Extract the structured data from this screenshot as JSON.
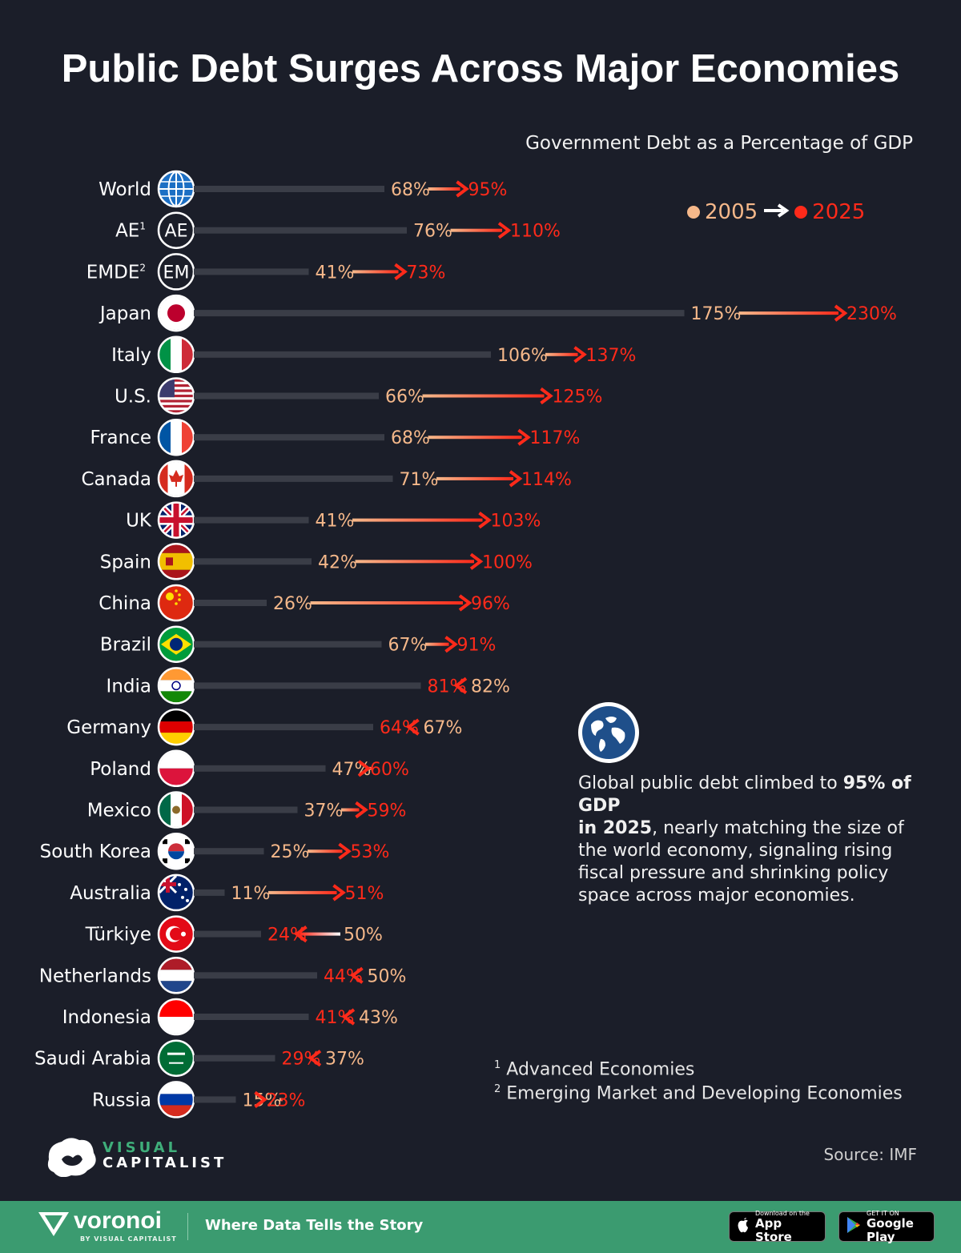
{
  "title": "Public Debt Surges Across Major Economies",
  "subtitle": "Government Debt as a Percentage of GDP",
  "legend": {
    "from_label": "2005",
    "to_label": "2025",
    "color_2005": "#f5b88a",
    "color_2025": "#ff2a1a"
  },
  "callout": {
    "icon": "globe-icon",
    "text_bold_1": "95% of GDP",
    "text_bold_2": "in 2025",
    "text_pre": "Global public debt climbed to ",
    "text_post": ", nearly matching the size of the world economy, signaling rising fiscal pressure and shrinking policy space across major economies."
  },
  "footnotes": [
    {
      "mark": "1",
      "text": "Advanced Economies"
    },
    {
      "mark": "2",
      "text": "Emerging Market and Developing Economies"
    }
  ],
  "source": "Source: IMF",
  "brand": {
    "vc_line1": "VISUAL",
    "vc_line2": "CAPITALIST",
    "voronoi": "voronoi",
    "voronoi_by": "BY VISUAL CAPITALIST",
    "tagline": "Where Data Tells the Story"
  },
  "stores": {
    "apple_small": "Download on the",
    "apple_big": "App Store",
    "google_small": "GET IT ON",
    "google_big": "Google Play"
  },
  "chart_data": {
    "type": "dumbbell",
    "title": "Public Debt Surges Across Major Economies",
    "subtitle": "Government Debt as a Percentage of GDP",
    "unit": "%",
    "series": [
      {
        "name": "2005"
      },
      {
        "name": "2025"
      }
    ],
    "rows": [
      {
        "label": "World",
        "sup": "",
        "icon": "globe-icon",
        "v2005": 68,
        "v2025": 95
      },
      {
        "label": "AE",
        "sup": "1",
        "icon": "ae-badge-icon",
        "v2005": 76,
        "v2025": 110
      },
      {
        "label": "EMDE",
        "sup": "2",
        "icon": "em-badge-icon",
        "v2005": 41,
        "v2025": 73
      },
      {
        "label": "Japan",
        "sup": "",
        "icon": "japan-flag-icon",
        "v2005": 175,
        "v2025": 230
      },
      {
        "label": "Italy",
        "sup": "",
        "icon": "italy-flag-icon",
        "v2005": 106,
        "v2025": 137
      },
      {
        "label": "U.S.",
        "sup": "",
        "icon": "us-flag-icon",
        "v2005": 66,
        "v2025": 125
      },
      {
        "label": "France",
        "sup": "",
        "icon": "france-flag-icon",
        "v2005": 68,
        "v2025": 117
      },
      {
        "label": "Canada",
        "sup": "",
        "icon": "canada-flag-icon",
        "v2005": 71,
        "v2025": 114
      },
      {
        "label": "UK",
        "sup": "",
        "icon": "uk-flag-icon",
        "v2005": 41,
        "v2025": 103
      },
      {
        "label": "Spain",
        "sup": "",
        "icon": "spain-flag-icon",
        "v2005": 42,
        "v2025": 100
      },
      {
        "label": "China",
        "sup": "",
        "icon": "china-flag-icon",
        "v2005": 26,
        "v2025": 96
      },
      {
        "label": "Brazil",
        "sup": "",
        "icon": "brazil-flag-icon",
        "v2005": 67,
        "v2025": 91
      },
      {
        "label": "India",
        "sup": "",
        "icon": "india-flag-icon",
        "v2005": 82,
        "v2025": 81
      },
      {
        "label": "Germany",
        "sup": "",
        "icon": "germany-flag-icon",
        "v2005": 67,
        "v2025": 64
      },
      {
        "label": "Poland",
        "sup": "",
        "icon": "poland-flag-icon",
        "v2005": 47,
        "v2025": 60
      },
      {
        "label": "Mexico",
        "sup": "",
        "icon": "mexico-flag-icon",
        "v2005": 37,
        "v2025": 59
      },
      {
        "label": "South Korea",
        "sup": "",
        "icon": "south-korea-flag-icon",
        "v2005": 25,
        "v2025": 53
      },
      {
        "label": "Australia",
        "sup": "",
        "icon": "australia-flag-icon",
        "v2005": 11,
        "v2025": 51
      },
      {
        "label": "Türkiye",
        "sup": "",
        "icon": "turkiye-flag-icon",
        "v2005": 50,
        "v2025": 24
      },
      {
        "label": "Netherlands",
        "sup": "",
        "icon": "netherlands-flag-icon",
        "v2005": 50,
        "v2025": 44
      },
      {
        "label": "Indonesia",
        "sup": "",
        "icon": "indonesia-flag-icon",
        "v2005": 43,
        "v2025": 41
      },
      {
        "label": "Saudi Arabia",
        "sup": "",
        "icon": "saudi-arabia-flag-icon",
        "v2005": 37,
        "v2025": 29
      },
      {
        "label": "Russia",
        "sup": "",
        "icon": "russia-flag-icon",
        "v2005": 15,
        "v2025": 23
      }
    ]
  }
}
